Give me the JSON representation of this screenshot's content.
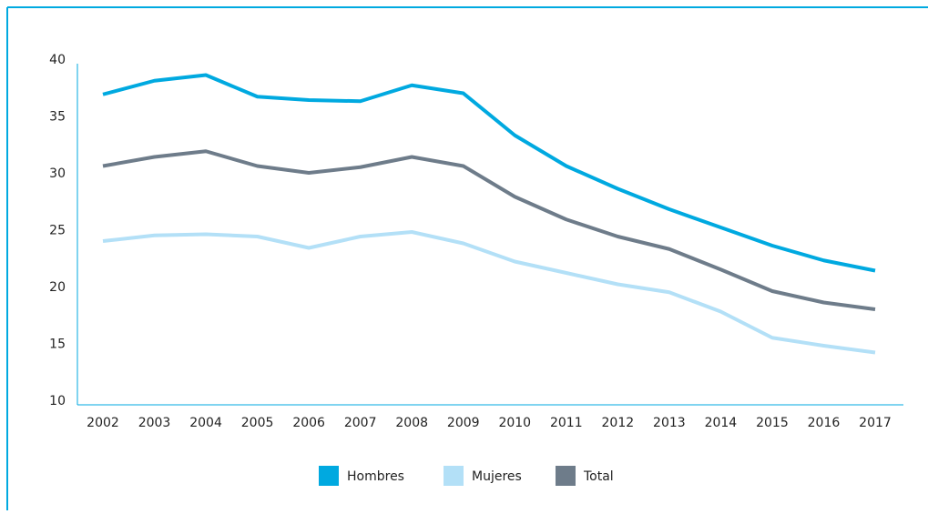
{
  "chart_data": {
    "type": "line",
    "categories": [
      "2002",
      "2003",
      "2004",
      "2005",
      "2006",
      "2007",
      "2008",
      "2009",
      "2010",
      "2011",
      "2012",
      "2013",
      "2014",
      "2015",
      "2016",
      "2017"
    ],
    "series": [
      {
        "name": "Hombres",
        "color": "#00a9e0",
        "values": [
          37.3,
          38.5,
          39.0,
          37.1,
          36.8,
          36.7,
          38.1,
          37.4,
          33.7,
          31.0,
          29.0,
          27.2,
          25.6,
          24.0,
          22.7,
          21.8
        ]
      },
      {
        "name": "Mujeres",
        "color": "#b3e0f7",
        "values": [
          24.4,
          24.9,
          25.0,
          24.8,
          23.8,
          24.8,
          25.2,
          24.2,
          22.6,
          21.6,
          20.6,
          19.9,
          18.2,
          15.9,
          15.2,
          14.6
        ]
      },
      {
        "name": "Total",
        "color": "#6e7c8a",
        "values": [
          31.0,
          31.8,
          32.3,
          31.0,
          30.4,
          30.9,
          31.8,
          31.0,
          28.3,
          26.3,
          24.8,
          23.7,
          21.9,
          20.0,
          19.0,
          18.4
        ]
      }
    ],
    "ylim": [
      10,
      40
    ],
    "yticks": [
      10,
      15,
      20,
      25,
      30,
      35,
      40
    ],
    "legend": "bottom"
  }
}
